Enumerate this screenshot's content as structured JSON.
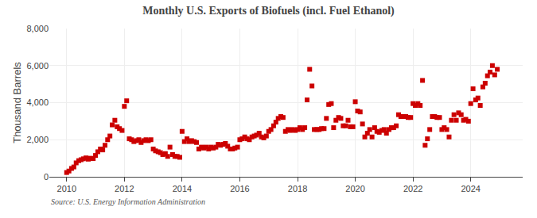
{
  "chart_data": {
    "type": "scatter",
    "title": "Monthly U.S. Exports of Biofuels (incl. Fuel Ethanol)",
    "ylabel": "Thousand Barrels",
    "annotations": [
      "Source: U.S. Energy Information Administration"
    ],
    "color": "#cc0000",
    "marker": "square",
    "grid": true,
    "xlim": [
      2009.4,
      2025.8
    ],
    "xticks": [
      2010,
      2012,
      2014,
      2016,
      2018,
      2020,
      2022,
      2024
    ],
    "ylim": [
      0,
      8000
    ],
    "yticks": [
      0,
      {
        "value": 2000,
        "label": "2,000"
      },
      {
        "value": 4000,
        "label": "4,000"
      },
      {
        "value": 6000,
        "label": "6,000"
      },
      {
        "value": 8000,
        "label": "8,000"
      }
    ],
    "x": [
      2010.0,
      2010.08,
      2010.17,
      2010.25,
      2010.33,
      2010.42,
      2010.5,
      2010.58,
      2010.67,
      2010.75,
      2010.83,
      2010.92,
      2011.0,
      2011.08,
      2011.17,
      2011.25,
      2011.33,
      2011.42,
      2011.5,
      2011.58,
      2011.67,
      2011.75,
      2011.83,
      2011.92,
      2012.0,
      2012.08,
      2012.17,
      2012.25,
      2012.33,
      2012.42,
      2012.5,
      2012.58,
      2012.67,
      2012.75,
      2012.83,
      2012.92,
      2013.0,
      2013.08,
      2013.17,
      2013.25,
      2013.33,
      2013.42,
      2013.5,
      2013.58,
      2013.67,
      2013.75,
      2013.83,
      2013.92,
      2014.0,
      2014.08,
      2014.17,
      2014.25,
      2014.33,
      2014.42,
      2014.5,
      2014.58,
      2014.67,
      2014.75,
      2014.83,
      2014.92,
      2015.0,
      2015.08,
      2015.17,
      2015.25,
      2015.33,
      2015.42,
      2015.5,
      2015.58,
      2015.67,
      2015.75,
      2015.83,
      2015.92,
      2016.0,
      2016.08,
      2016.17,
      2016.25,
      2016.33,
      2016.42,
      2016.5,
      2016.58,
      2016.67,
      2016.75,
      2016.83,
      2016.92,
      2017.0,
      2017.08,
      2017.17,
      2017.25,
      2017.33,
      2017.42,
      2017.5,
      2017.58,
      2017.67,
      2017.75,
      2017.83,
      2017.92,
      2018.0,
      2018.08,
      2018.17,
      2018.25,
      2018.33,
      2018.42,
      2018.5,
      2018.58,
      2018.67,
      2018.75,
      2018.83,
      2018.92,
      2019.0,
      2019.08,
      2019.17,
      2019.25,
      2019.33,
      2019.42,
      2019.5,
      2019.58,
      2019.67,
      2019.75,
      2019.83,
      2019.92,
      2020.0,
      2020.08,
      2020.17,
      2020.25,
      2020.33,
      2020.42,
      2020.5,
      2020.58,
      2020.67,
      2020.75,
      2020.83,
      2020.92,
      2021.0,
      2021.08,
      2021.17,
      2021.25,
      2021.33,
      2021.42,
      2021.5,
      2021.58,
      2021.67,
      2021.75,
      2021.83,
      2021.92,
      2022.0,
      2022.08,
      2022.17,
      2022.25,
      2022.33,
      2022.42,
      2022.5,
      2022.58,
      2022.67,
      2022.75,
      2022.83,
      2022.92,
      2023.0,
      2023.08,
      2023.17,
      2023.25,
      2023.33,
      2023.42,
      2023.5,
      2023.58,
      2023.67,
      2023.75,
      2023.83,
      2023.92,
      2024.0,
      2024.08,
      2024.17,
      2024.25,
      2024.33,
      2024.42,
      2024.5,
      2024.58,
      2024.67,
      2024.75,
      2024.83,
      2024.92
    ],
    "values": [
      230,
      310,
      450,
      530,
      750,
      870,
      920,
      970,
      1020,
      950,
      1000,
      980,
      1150,
      1350,
      1500,
      1450,
      1700,
      2000,
      2200,
      2800,
      3050,
      2700,
      2600,
      2500,
      3800,
      4100,
      2050,
      2000,
      1900,
      1950,
      2000,
      1850,
      1950,
      2000,
      1950,
      2000,
      1500,
      1400,
      1350,
      1300,
      1200,
      1250,
      1100,
      1600,
      1200,
      1100,
      1100,
      1050,
      2450,
      1900,
      2050,
      1900,
      1950,
      1900,
      1850,
      1500,
      1600,
      1550,
      1600,
      1500,
      1600,
      1550,
      1600,
      1750,
      1700,
      1750,
      1800,
      1650,
      1500,
      1500,
      1550,
      1600,
      2000,
      2050,
      2150,
      2050,
      2000,
      2150,
      2200,
      2250,
      2350,
      2150,
      2100,
      2200,
      2450,
      2550,
      2750,
      2950,
      3150,
      3250,
      3200,
      2450,
      2550,
      2500,
      2550,
      2500,
      2550,
      2650,
      2550,
      2650,
      4150,
      5800,
      4900,
      2550,
      2550,
      2550,
      2600,
      2600,
      3150,
      3900,
      3950,
      2650,
      3050,
      3200,
      3150,
      2750,
      2750,
      3050,
      2700,
      2700,
      4050,
      3550,
      3500,
      2850,
      2150,
      2350,
      2550,
      2150,
      2650,
      2450,
      2400,
      2500,
      2550,
      2350,
      2550,
      2650,
      2650,
      2750,
      3350,
      3250,
      3250,
      3250,
      3200,
      3200,
      3950,
      3850,
      3950,
      3850,
      5200,
      1700,
      2050,
      2550,
      3250,
      3250,
      3200,
      3200,
      2550,
      2650,
      2550,
      2150,
      3050,
      3350,
      3050,
      3450,
      3350,
      3050,
      3100,
      3000,
      3950,
      4750,
      4150,
      4250,
      3850,
      4850,
      5050,
      5450,
      5650,
      6000,
      5500,
      5800
    ]
  }
}
